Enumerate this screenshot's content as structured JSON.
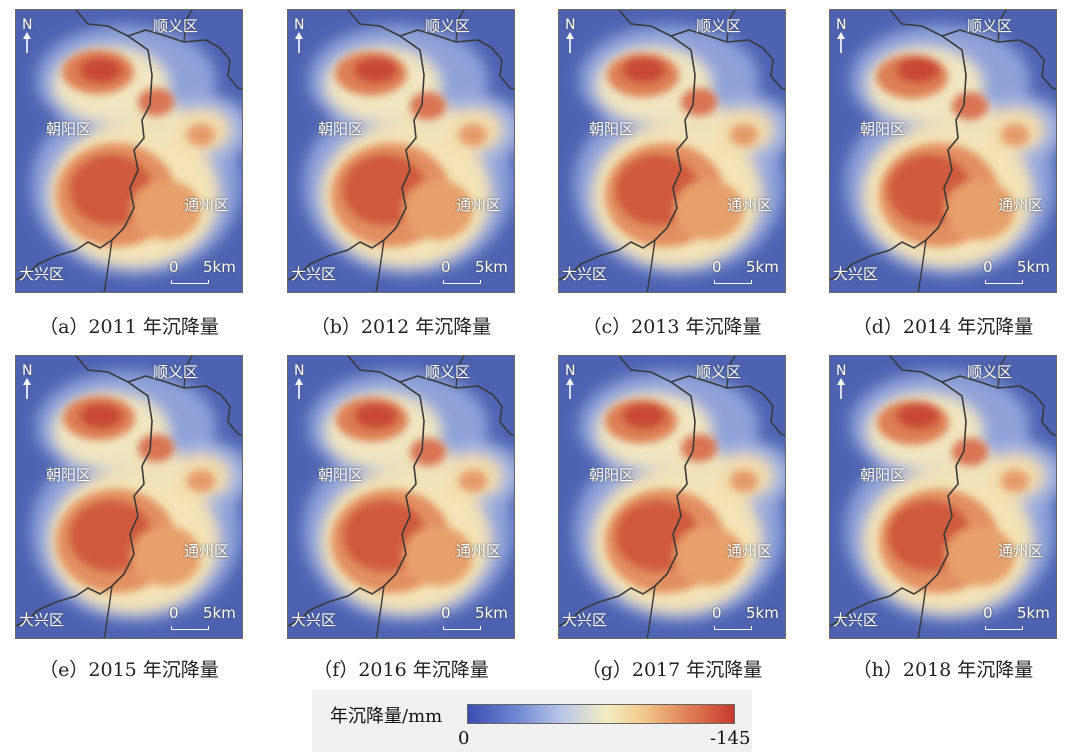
{
  "panels": [
    {
      "year_caption": "（a）2011 年沉降量"
    },
    {
      "year_caption": "（b）2012 年沉降量"
    },
    {
      "year_caption": "（c）2013 年沉降量"
    },
    {
      "year_caption": "（d）2014 年沉降量"
    },
    {
      "year_caption": "（e）2015 年沉降量"
    },
    {
      "year_caption": "（f）2016 年沉降量"
    },
    {
      "year_caption": "（g）2017 年沉降量"
    },
    {
      "year_caption": "（h）2018 年沉降量"
    }
  ],
  "map_labels": {
    "north": "N",
    "shunyi": "顺义区",
    "chaoyang": "朝阳区",
    "tongzhou": "通州区",
    "daxing": "大兴区",
    "scale_zero": "0",
    "scale_five": "5km"
  },
  "legend": {
    "title": "年沉降量/mm",
    "min": "0",
    "max": "-145",
    "colors": [
      "#3b4cb0",
      "#6d86d1",
      "#b8c6e8",
      "#f3edc3",
      "#f1c98a",
      "#df8357",
      "#c8392e"
    ]
  }
}
